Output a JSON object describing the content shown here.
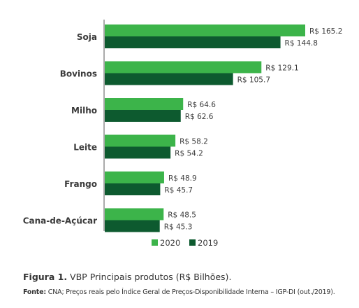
{
  "chart_data": {
    "type": "bar",
    "orientation": "horizontal",
    "categories": [
      "Soja",
      "Bovinos",
      "Milho",
      "Leite",
      "Frango",
      "Cana-de-Açúcar"
    ],
    "series": [
      {
        "name": "2020",
        "color": "#3cb44a",
        "values": [
          165.2,
          129.1,
          64.6,
          58.2,
          48.9,
          48.5
        ],
        "labels": [
          "R$ 165.2",
          "R$ 129.1",
          "R$ 64.6",
          "R$ 58.2",
          "R$ 48.9",
          "R$ 48.5"
        ]
      },
      {
        "name": "2019",
        "color": "#0d5a2f",
        "values": [
          144.8,
          105.7,
          62.6,
          54.2,
          45.7,
          45.3
        ],
        "labels": [
          "R$ 144.8",
          "R$ 105.7",
          "R$ 62.6",
          "R$ 54.2",
          "R$ 45.7",
          "R$ 45.3"
        ]
      }
    ],
    "xlim": [
      0,
      165.2
    ],
    "grid": false,
    "legend": "bottom-center"
  },
  "caption": {
    "figure_number": "Figura 1.",
    "text": " VBP Principais produtos (R$ Bilhões)."
  },
  "source": {
    "label": "Fonte:",
    "text": " CNA; Preços reais pelo Índice Geral de Preços-Disponibilidade Interna – IGP-DI (out./2019)."
  }
}
